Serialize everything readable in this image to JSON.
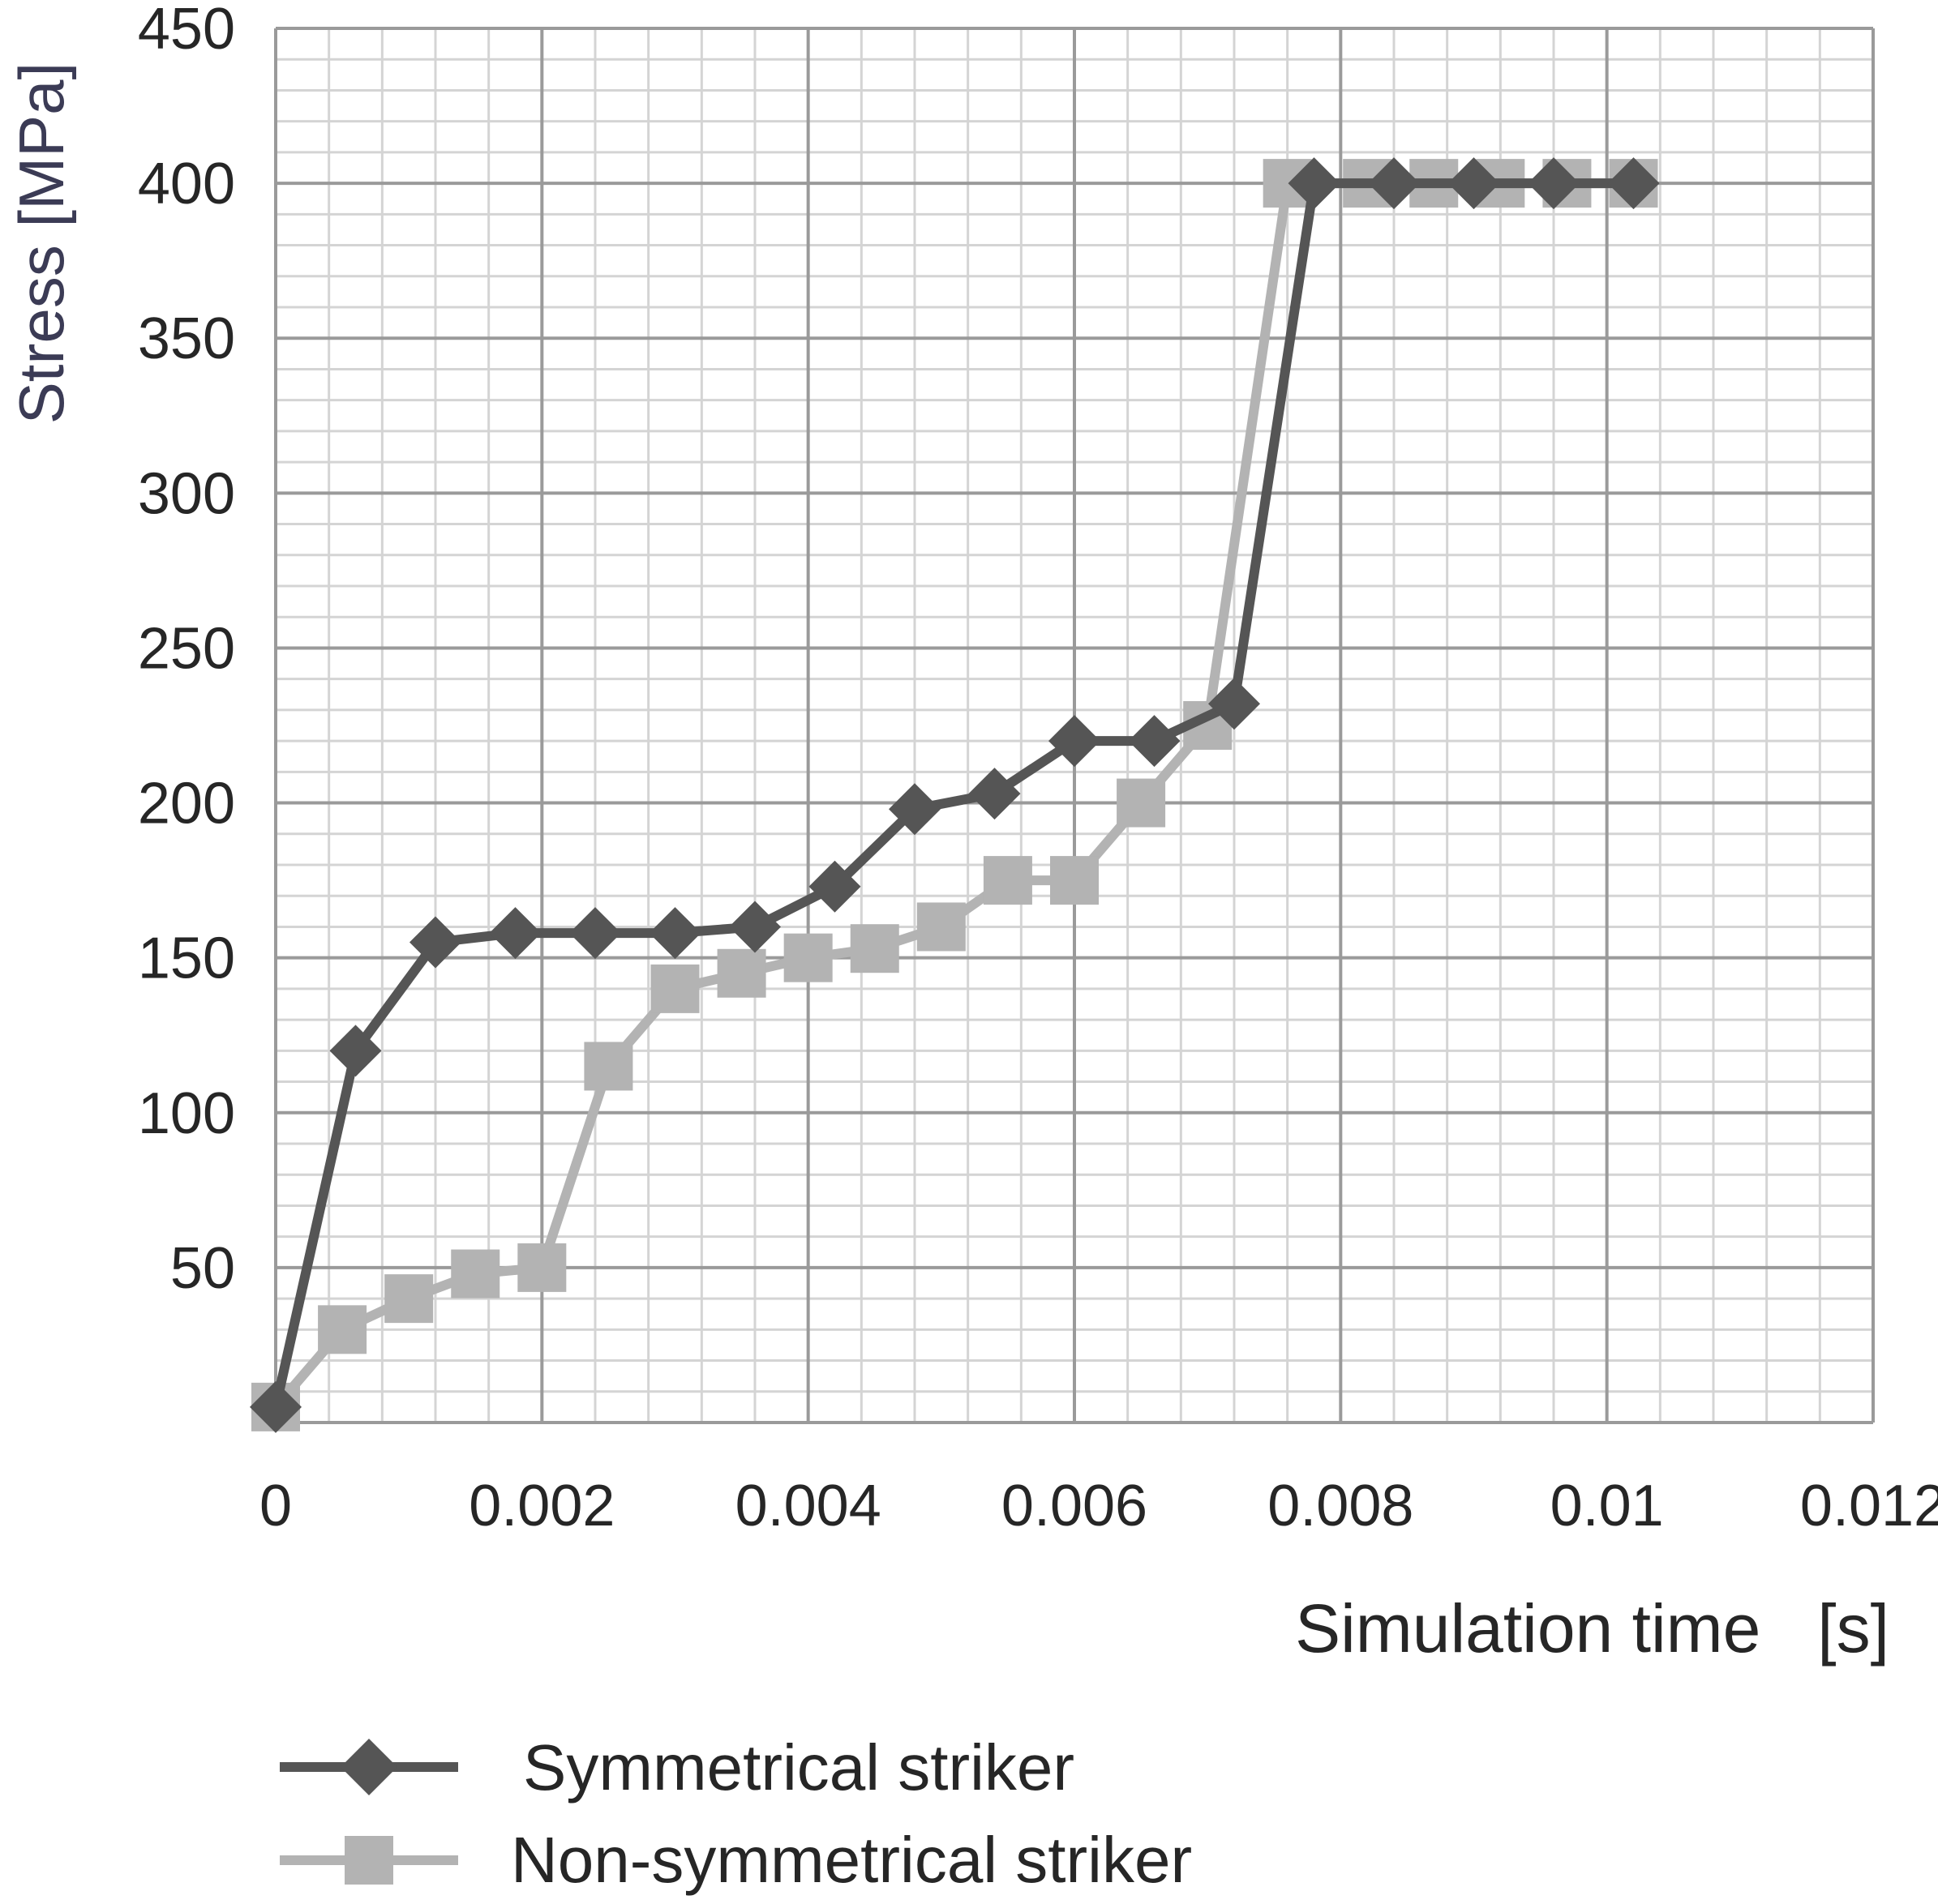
{
  "chart_data": {
    "type": "line",
    "title": "",
    "xlabel": "Simulation time   [s]",
    "ylabel": "Stress [MPa]",
    "xlim": [
      0,
      0.012
    ],
    "ylim": [
      0,
      450
    ],
    "x_ticks": [
      0,
      0.002,
      0.004,
      0.006,
      0.008,
      0.01,
      0.012
    ],
    "x_tick_labels": [
      "0",
      "0.002",
      "0.004",
      "0.006",
      "0.008",
      "0.01",
      "0.012"
    ],
    "y_ticks": [
      50,
      100,
      150,
      200,
      250,
      300,
      350,
      400,
      450
    ],
    "y_tick_labels": [
      "50",
      "100",
      "150",
      "200",
      "250",
      "300",
      "350",
      "400",
      "450"
    ],
    "grid": true,
    "legend_position": "bottom-left",
    "series": [
      {
        "name": "Symmetrical striker",
        "marker": "diamond",
        "color": "#555555",
        "x": [
          0,
          0.0006,
          0.0012,
          0.0018,
          0.0024,
          0.003,
          0.0036,
          0.0042,
          0.0048,
          0.0054,
          0.006,
          0.0066,
          0.0072,
          0.0078,
          0.0084,
          0.009,
          0.0096,
          0.0102
        ],
        "y": [
          5,
          120,
          155,
          158,
          158,
          158,
          160,
          173,
          198,
          203,
          220,
          220,
          232,
          400,
          400,
          400,
          400,
          400
        ]
      },
      {
        "name": "Non-symmetrical striker",
        "marker": "square",
        "color": "#b3b3b3",
        "x": [
          0,
          0.0005,
          0.001,
          0.0015,
          0.002,
          0.0025,
          0.003,
          0.0035,
          0.004,
          0.0045,
          0.005,
          0.0055,
          0.006,
          0.0065,
          0.007,
          0.0076,
          0.0082,
          0.0087,
          0.0092,
          0.0097,
          0.0102
        ],
        "y": [
          5,
          30,
          40,
          48,
          50,
          115,
          140,
          145,
          150,
          153,
          160,
          175,
          175,
          200,
          225,
          400,
          400,
          400,
          400,
          400,
          400
        ]
      }
    ]
  }
}
